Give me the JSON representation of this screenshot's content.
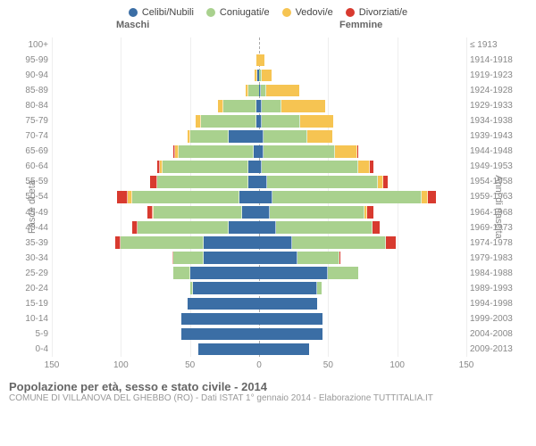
{
  "type": "population_pyramid",
  "legend": [
    {
      "label": "Celibi/Nubili",
      "color": "#3b6ea5"
    },
    {
      "label": "Coniugati/e",
      "color": "#a9d18e"
    },
    {
      "label": "Vedovi/e",
      "color": "#f6c452"
    },
    {
      "label": "Divorziati/e",
      "color": "#d83a2f"
    }
  ],
  "header_male": "Maschi",
  "header_female": "Femmine",
  "yaxis_left_title": "Fasce di età",
  "yaxis_right_title": "Anni di nascita",
  "xaxis_ticks": [
    150,
    100,
    50,
    0,
    50,
    100,
    150
  ],
  "xaxis_max": 150,
  "grid_color": "#eeeeee",
  "centerline_color": "#aaaaaa",
  "background_color": "#ffffff",
  "axis_label_color": "#888888",
  "label_fontsize": 10,
  "rows": [
    {
      "age": "100+",
      "birth": "≤ 1913",
      "m": [
        0,
        0,
        0,
        0
      ],
      "f": [
        0,
        0,
        0,
        0
      ]
    },
    {
      "age": "95-99",
      "birth": "1914-1918",
      "m": [
        0,
        0,
        2,
        0
      ],
      "f": [
        0,
        0,
        4,
        0
      ]
    },
    {
      "age": "90-94",
      "birth": "1919-1923",
      "m": [
        1,
        0,
        2,
        0
      ],
      "f": [
        0,
        2,
        7,
        0
      ]
    },
    {
      "age": "85-89",
      "birth": "1924-1928",
      "m": [
        0,
        8,
        2,
        0
      ],
      "f": [
        1,
        4,
        24,
        0
      ]
    },
    {
      "age": "80-84",
      "birth": "1929-1933",
      "m": [
        2,
        24,
        4,
        0
      ],
      "f": [
        2,
        14,
        32,
        0
      ]
    },
    {
      "age": "75-79",
      "birth": "1934-1938",
      "m": [
        2,
        40,
        4,
        0
      ],
      "f": [
        2,
        28,
        24,
        0
      ]
    },
    {
      "age": "70-74",
      "birth": "1939-1943",
      "m": [
        22,
        28,
        2,
        0
      ],
      "f": [
        3,
        32,
        18,
        0
      ]
    },
    {
      "age": "65-69",
      "birth": "1944-1948",
      "m": [
        4,
        54,
        3,
        1
      ],
      "f": [
        3,
        52,
        16,
        1
      ]
    },
    {
      "age": "60-64",
      "birth": "1949-1953",
      "m": [
        8,
        62,
        2,
        2
      ],
      "f": [
        2,
        70,
        8,
        3
      ]
    },
    {
      "age": "55-59",
      "birth": "1954-1958",
      "m": [
        8,
        66,
        0,
        5
      ],
      "f": [
        6,
        80,
        4,
        3
      ]
    },
    {
      "age": "50-54",
      "birth": "1959-1963",
      "m": [
        14,
        78,
        3,
        8
      ],
      "f": [
        10,
        108,
        4,
        6
      ]
    },
    {
      "age": "45-49",
      "birth": "1964-1968",
      "m": [
        12,
        64,
        1,
        4
      ],
      "f": [
        8,
        68,
        2,
        5
      ]
    },
    {
      "age": "40-44",
      "birth": "1969-1973",
      "m": [
        22,
        66,
        0,
        4
      ],
      "f": [
        12,
        70,
        0,
        5
      ]
    },
    {
      "age": "35-39",
      "birth": "1974-1978",
      "m": [
        40,
        60,
        0,
        4
      ],
      "f": [
        24,
        68,
        0,
        7
      ]
    },
    {
      "age": "30-34",
      "birth": "1979-1983",
      "m": [
        40,
        22,
        0,
        1
      ],
      "f": [
        28,
        30,
        0,
        1
      ]
    },
    {
      "age": "25-29",
      "birth": "1984-1988",
      "m": [
        50,
        12,
        0,
        0
      ],
      "f": [
        50,
        22,
        0,
        0
      ]
    },
    {
      "age": "20-24",
      "birth": "1989-1993",
      "m": [
        48,
        2,
        0,
        0
      ],
      "f": [
        42,
        3,
        0,
        0
      ]
    },
    {
      "age": "15-19",
      "birth": "1994-1998",
      "m": [
        52,
        0,
        0,
        0
      ],
      "f": [
        42,
        0,
        0,
        0
      ]
    },
    {
      "age": "10-14",
      "birth": "1999-2003",
      "m": [
        56,
        0,
        0,
        0
      ],
      "f": [
        46,
        0,
        0,
        0
      ]
    },
    {
      "age": "5-9",
      "birth": "2004-2008",
      "m": [
        56,
        0,
        0,
        0
      ],
      "f": [
        46,
        0,
        0,
        0
      ]
    },
    {
      "age": "0-4",
      "birth": "2009-2013",
      "m": [
        44,
        0,
        0,
        0
      ],
      "f": [
        36,
        0,
        0,
        0
      ]
    }
  ],
  "footer_title": "Popolazione per età, sesso e stato civile - 2014",
  "footer_sub": "COMUNE DI VILLANOVA DEL GHEBBO (RO) - Dati ISTAT 1° gennaio 2014 - Elaborazione TUTTITALIA.IT"
}
